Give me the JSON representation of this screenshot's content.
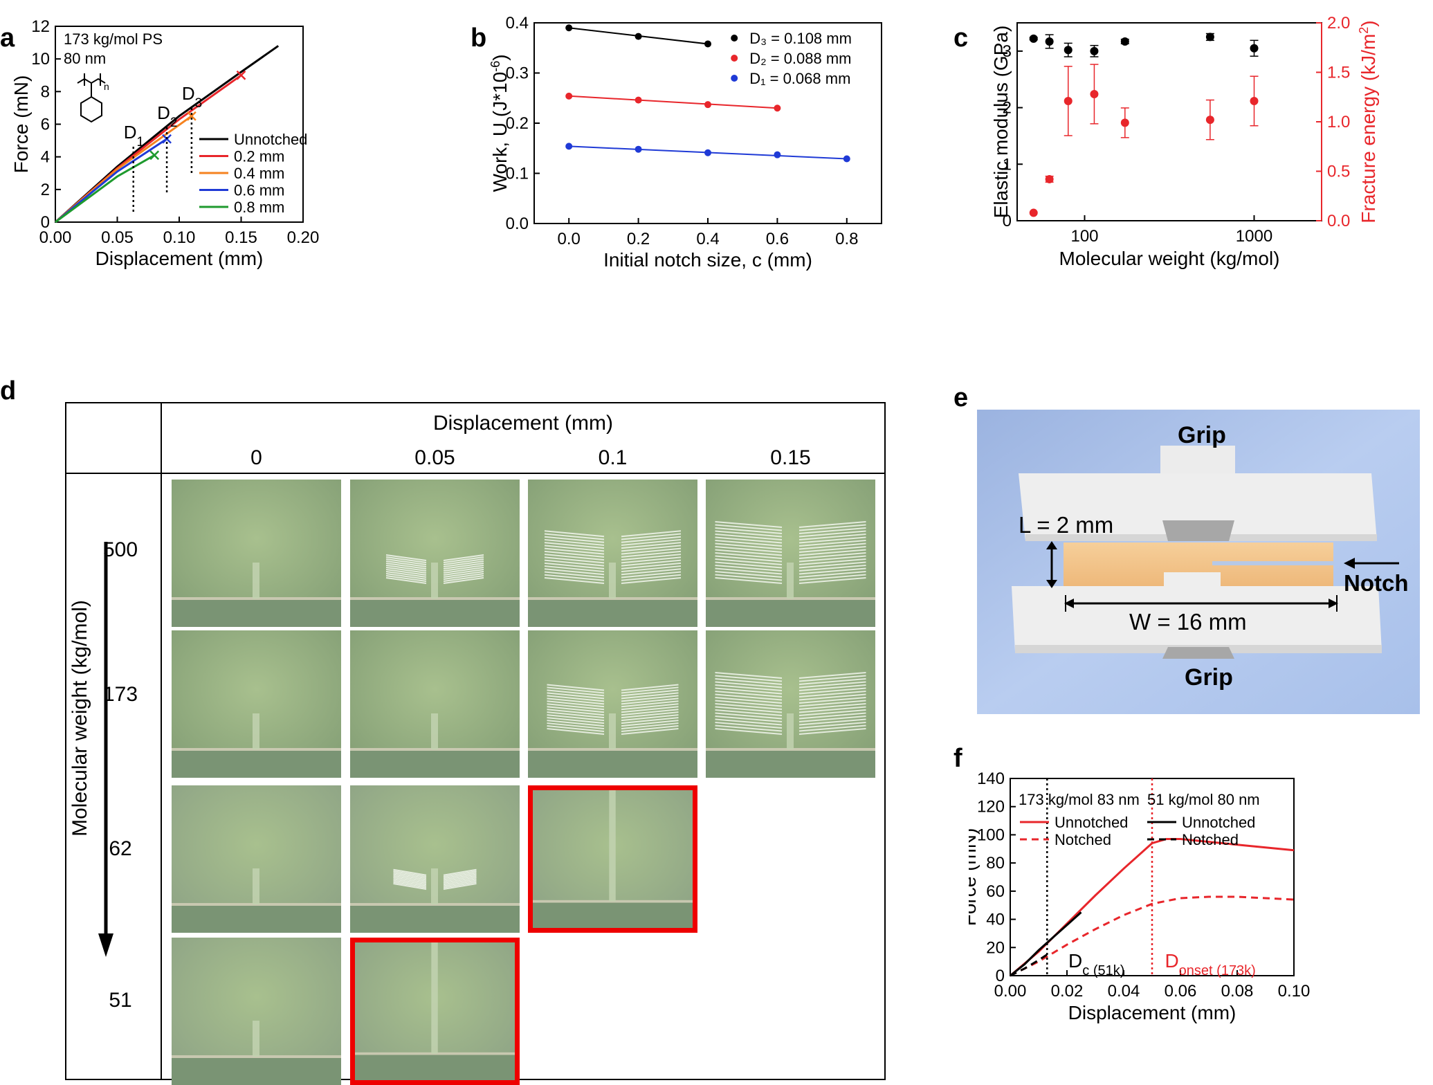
{
  "panels": {
    "a": "a",
    "b": "b",
    "c": "c",
    "d": "d",
    "e": "e",
    "f": "f"
  },
  "chart_data": [
    {
      "id": "a",
      "type": "line",
      "xlabel": "Displacement (mm)",
      "ylabel": "Force (mN)",
      "xlim": [
        0,
        0.2
      ],
      "ylim": [
        0,
        12
      ],
      "xticks": [
        "0.00",
        "0.05",
        "0.10",
        "0.15",
        "0.20"
      ],
      "yticks": [
        "0",
        "2",
        "4",
        "6",
        "8",
        "10",
        "12"
      ],
      "annotation_lines": [
        "173 kg/mol PS",
        "80 nm"
      ],
      "markers": [
        "D1",
        "D2",
        "D3"
      ],
      "marker_x": [
        0.063,
        0.09,
        0.11
      ],
      "series": [
        {
          "name": "Unnotched",
          "color": "#000000",
          "x": [
            0,
            0.05,
            0.1,
            0.15,
            0.18
          ],
          "y": [
            0,
            3.4,
            6.5,
            9.2,
            10.8
          ],
          "end_marker": false
        },
        {
          "name": "0.2 mm",
          "color": "#e8262b",
          "x": [
            0,
            0.05,
            0.1,
            0.15
          ],
          "y": [
            0,
            3.3,
            6.3,
            9.0
          ],
          "end_marker": true
        },
        {
          "name": "0.4 mm",
          "color": "#f5821f",
          "x": [
            0,
            0.05,
            0.11
          ],
          "y": [
            0,
            3.25,
            6.5
          ],
          "end_marker": true
        },
        {
          "name": "0.6 mm",
          "color": "#1f3ad6",
          "x": [
            0,
            0.05,
            0.09
          ],
          "y": [
            0,
            3.1,
            5.1
          ],
          "end_marker": true
        },
        {
          "name": "0.8 mm",
          "color": "#1e9a2e",
          "x": [
            0,
            0.05,
            0.08
          ],
          "y": [
            0,
            2.8,
            4.1
          ],
          "end_marker": true
        }
      ]
    },
    {
      "id": "b",
      "type": "scatter",
      "xlabel": "Initial notch size, c (mm)",
      "ylabel": "Work, U (J*10⁻⁶)",
      "xlim": [
        -0.1,
        0.9
      ],
      "ylim": [
        0,
        0.4
      ],
      "xticks": [
        "0.0",
        "0.2",
        "0.4",
        "0.6",
        "0.8"
      ],
      "yticks": [
        "0.0",
        "0.1",
        "0.2",
        "0.3",
        "0.4"
      ],
      "series": [
        {
          "name": "D₃ = 0.108 mm",
          "color": "#000000",
          "x": [
            0,
            0.2,
            0.4
          ],
          "y": [
            0.39,
            0.373,
            0.358
          ]
        },
        {
          "name": "D₂ = 0.088 mm",
          "color": "#e8262b",
          "x": [
            0,
            0.2,
            0.4,
            0.6
          ],
          "y": [
            0.254,
            0.246,
            0.237,
            0.23
          ]
        },
        {
          "name": "D₁ = 0.068 mm",
          "color": "#1f3ad6",
          "x": [
            0,
            0.2,
            0.4,
            0.6,
            0.8
          ],
          "y": [
            0.154,
            0.148,
            0.141,
            0.137,
            0.129
          ]
        }
      ]
    },
    {
      "id": "c",
      "type": "scatter",
      "xlabel": "Molecular weight (kg/mol)",
      "ylabel": "Elastic modulus (GPa)",
      "ylabel_right": "Fracture energy (kJ/m²)",
      "x_scale": "log",
      "xlim": [
        40,
        2500
      ],
      "ylim": [
        0,
        3.5
      ],
      "ylim_right": [
        0,
        2.0
      ],
      "xticks": [
        "100",
        "1000"
      ],
      "yticks": [
        "0",
        "1",
        "2",
        "3"
      ],
      "yticks_right": [
        "0.0",
        "0.5",
        "1.0",
        "1.5",
        "2.0"
      ],
      "series": [
        {
          "name": "Elastic modulus",
          "axis": "left",
          "color": "#000000",
          "x": [
            50,
            62,
            80,
            114,
            173,
            550,
            1000
          ],
          "y": [
            3.22,
            3.17,
            3.02,
            3.0,
            3.17,
            3.25,
            3.05
          ],
          "err": [
            0.02,
            0.12,
            0.12,
            0.1,
            0.04,
            0.06,
            0.14
          ]
        },
        {
          "name": "Fracture energy",
          "axis": "right",
          "color": "#e8262b",
          "x": [
            50,
            62,
            80,
            114,
            173,
            550,
            1000
          ],
          "y": [
            0.08,
            0.42,
            1.21,
            1.28,
            0.99,
            1.02,
            1.21
          ],
          "err": [
            0,
            0.03,
            0.35,
            0.3,
            0.15,
            0.2,
            0.25
          ]
        }
      ]
    },
    {
      "id": "f",
      "type": "line",
      "xlabel": "Displacement (mm)",
      "ylabel": "Force (mN)",
      "xlim": [
        0,
        0.1
      ],
      "ylim": [
        0,
        140
      ],
      "xticks": [
        "0.00",
        "0.02",
        "0.04",
        "0.06",
        "0.08",
        "0.10"
      ],
      "yticks": [
        "0",
        "20",
        "40",
        "60",
        "80",
        "100",
        "120",
        "140"
      ],
      "legend_headers": [
        "173 kg/mol 83 nm",
        "51 kg/mol 80 nm"
      ],
      "series": [
        {
          "name": "Unnotched",
          "group": "173",
          "color": "#e8262b",
          "dash": false,
          "x": [
            0,
            0.01,
            0.02,
            0.03,
            0.04,
            0.05,
            0.055,
            0.06,
            0.07,
            0.08,
            0.09,
            0.1
          ],
          "y": [
            0,
            17,
            37,
            57,
            76,
            94,
            97,
            97,
            95,
            93,
            91,
            89
          ]
        },
        {
          "name": "Notched",
          "group": "173",
          "color": "#e8262b",
          "dash": true,
          "x": [
            0,
            0.01,
            0.02,
            0.03,
            0.04,
            0.05,
            0.06,
            0.07,
            0.08,
            0.09,
            0.1
          ],
          "y": [
            0,
            10,
            22,
            33,
            43,
            51,
            55,
            56,
            56,
            55,
            54
          ]
        },
        {
          "name": "Unnotched",
          "group": "51",
          "color": "#000000",
          "dash": false,
          "x": [
            0,
            0.005,
            0.01,
            0.015,
            0.02,
            0.025
          ],
          "y": [
            0,
            8,
            18,
            27,
            36,
            45
          ]
        },
        {
          "name": "Notched",
          "group": "51",
          "color": "#000000",
          "dash": true,
          "x": [
            0,
            0.005,
            0.01,
            0.013
          ],
          "y": [
            0,
            5,
            11,
            15
          ]
        }
      ],
      "vlines": [
        {
          "x": 0.013,
          "color": "#000000",
          "label": "D",
          "sub": "c (51k)"
        },
        {
          "x": 0.05,
          "color": "#e8262b",
          "label": "D",
          "sub": "onset (173k)"
        }
      ]
    }
  ],
  "panel_d": {
    "header": "Displacement (mm)",
    "columns": [
      "0",
      "0.05",
      "0.1",
      "0.15"
    ],
    "row_axis_label": "Molecular weight (kg/mol)",
    "rows": [
      "500",
      "173",
      "62",
      "51"
    ],
    "highlighted": [
      "62@0.1",
      "51@0.05"
    ]
  },
  "panel_e": {
    "grip_top": "Grip",
    "grip_bottom": "Grip",
    "length_label": "L = 2 mm",
    "width_label": "W = 16 mm",
    "notch_label": "Notch"
  }
}
